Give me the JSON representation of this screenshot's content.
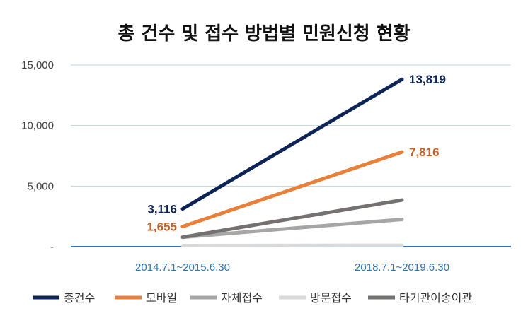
{
  "chart_data": {
    "type": "line",
    "title": "총 건수 및 접수 방법별 민원신청 현황",
    "categories": [
      "2014.7.1~2015.6.30",
      "2018.7.1~2019.6.30"
    ],
    "series": [
      {
        "name": "총건수",
        "values": [
          3116,
          13819
        ],
        "color": "#0d2456",
        "labels": [
          "3,116",
          "13,819"
        ],
        "label_color": "#0d2456"
      },
      {
        "name": "모바일",
        "values": [
          1655,
          7816
        ],
        "color": "#e8803a",
        "labels": [
          "1,655",
          "7,816"
        ],
        "label_color": "#c0622a"
      },
      {
        "name": "자체접수",
        "values": [
          780,
          2250
        ],
        "color": "#a6a6a6"
      },
      {
        "name": "방문접수",
        "values": [
          90,
          110
        ],
        "color": "#d9d9d9"
      },
      {
        "name": "타기관이송이관",
        "values": [
          780,
          3850
        ],
        "color": "#767171"
      }
    ],
    "yticks": [
      "-",
      "5,000",
      "10,000",
      "15,000"
    ],
    "ylim": [
      0,
      15000
    ],
    "grid": true,
    "legend_position": "bottom",
    "axis_color": "#2e75b6",
    "tick_label_color": "#2e75b6"
  }
}
